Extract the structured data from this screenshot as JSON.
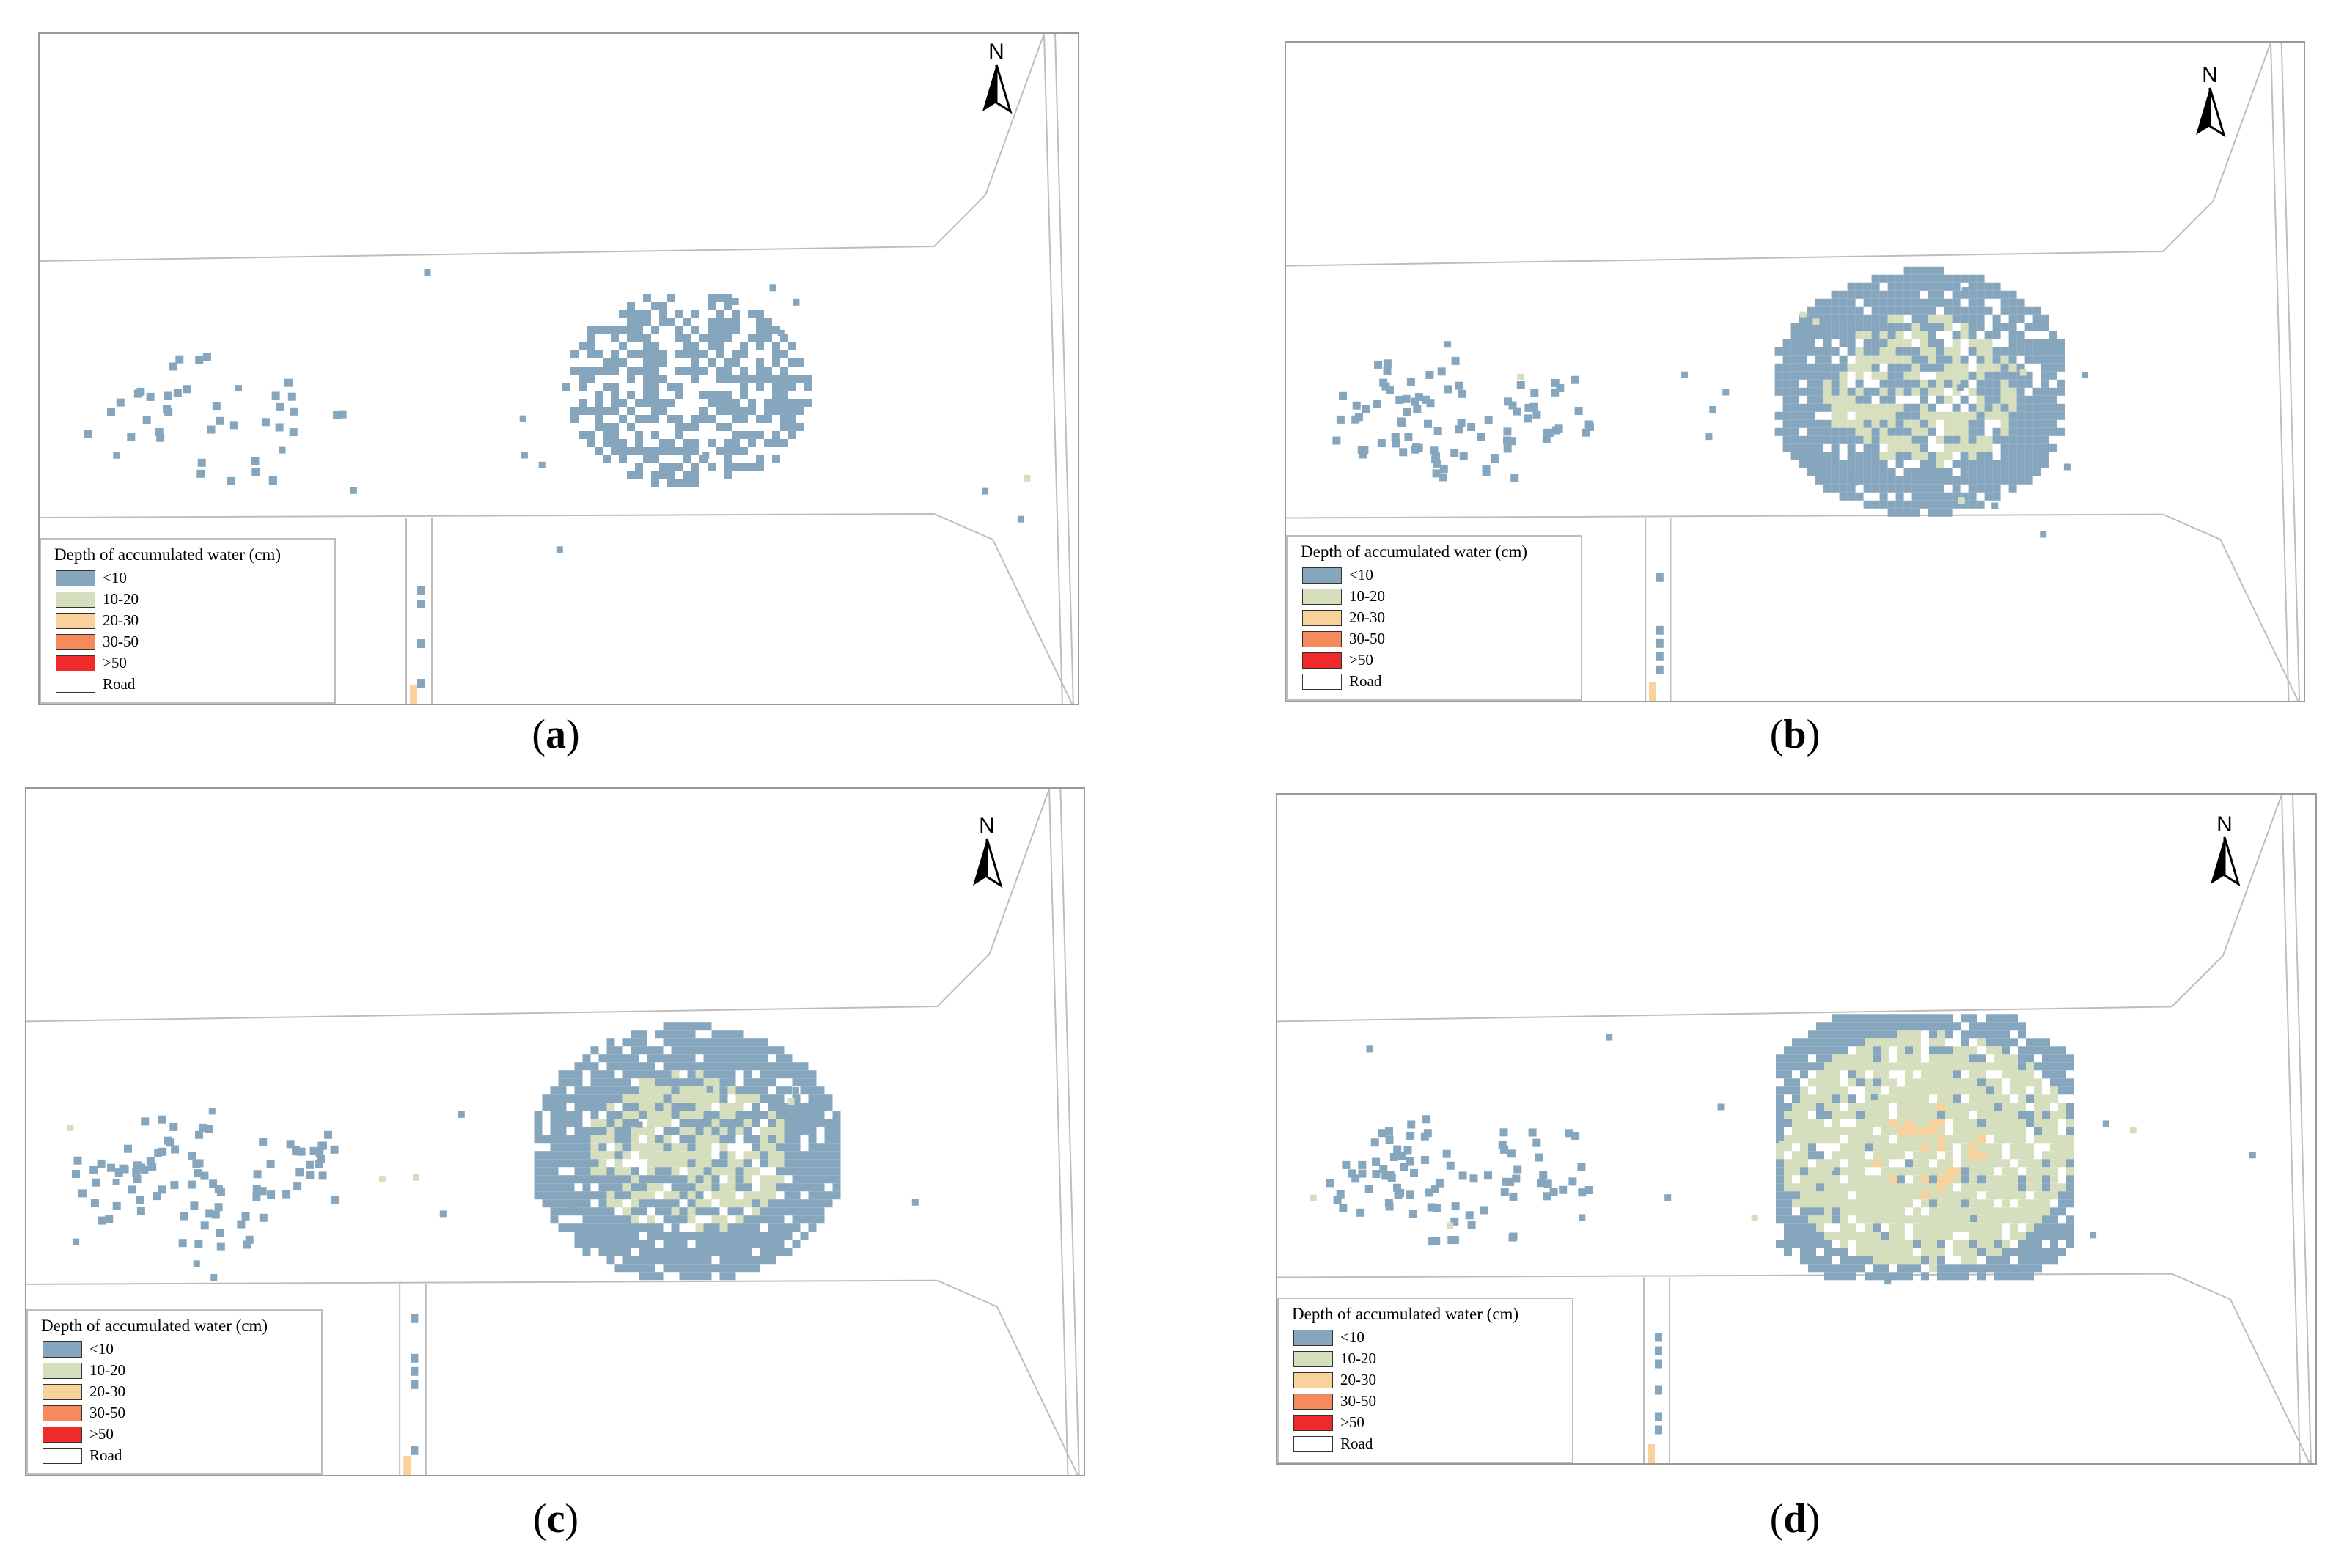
{
  "figure": {
    "legend_title": "Depth of accumulated water (cm)",
    "legend": [
      {
        "label": "<10",
        "color": "#86a6be"
      },
      {
        "label": "10-20",
        "color": "#d6dfbd"
      },
      {
        "label": "20-30",
        "color": "#f8d19b"
      },
      {
        "label": "30-50",
        "color": "#f58b5c"
      },
      {
        "label": ">50",
        "color": "#f0292a"
      },
      {
        "label": "Road",
        "color": "#ffffff"
      }
    ],
    "north_label": "N",
    "panels": [
      {
        "id": "a",
        "caption": "a",
        "scenario_level": 0
      },
      {
        "id": "b",
        "caption": "b",
        "scenario_level": 1
      },
      {
        "id": "c",
        "caption": "c",
        "scenario_level": 1
      },
      {
        "id": "d",
        "caption": "d",
        "scenario_level": 2
      }
    ]
  }
}
